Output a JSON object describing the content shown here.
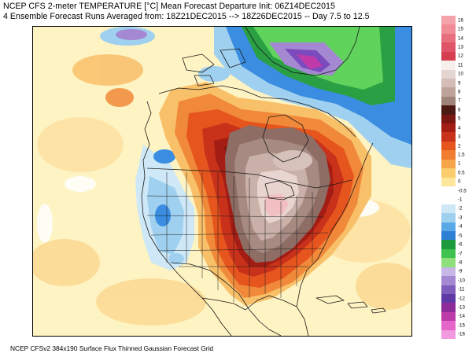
{
  "header": {
    "line1": "NCEP CFS 2-meter TEMPERATURE [°C] Mean Forecast Departure Init: 06Z14DEC2015",
    "line2": "4 Ensemble Forecast Runs Averaged from: 18Z21DEC2015 --> 18Z26DEC2015 -- Day 7.5 to 12.5"
  },
  "footer": "NCEP CFSv2 384x190 Surface Flux Thinned Gaussian Forecast Grid",
  "colorbar": {
    "unit": "°C",
    "bins": [
      {
        "label": "16",
        "color": "#f4a3ab"
      },
      {
        "label": "15",
        "color": "#ef8c96"
      },
      {
        "label": "14",
        "color": "#e86f7d"
      },
      {
        "label": "13",
        "color": "#e05467"
      },
      {
        "label": "12",
        "color": "#d53d50"
      },
      {
        "label": "11",
        "color": "#f6efec"
      },
      {
        "label": "10",
        "color": "#e4d5d1"
      },
      {
        "label": "9",
        "color": "#d4bdb6"
      },
      {
        "label": "8",
        "color": "#bfa39a"
      },
      {
        "label": "7",
        "color": "#9f8278"
      },
      {
        "label": "6",
        "color": "#4b1a12"
      },
      {
        "label": "5",
        "color": "#7a1712"
      },
      {
        "label": "4",
        "color": "#a41d14"
      },
      {
        "label": "3",
        "color": "#c8311a"
      },
      {
        "label": "2",
        "color": "#e6551e"
      },
      {
        "label": "1.5",
        "color": "#f07d31"
      },
      {
        "label": "1",
        "color": "#f7a54a"
      },
      {
        "label": "0.5",
        "color": "#fbcd6d"
      },
      {
        "label": "0",
        "color": "#fde79c"
      },
      {
        "label": "-0.5",
        "color": "#ffffff"
      },
      {
        "label": "-1",
        "color": "#ffffff"
      },
      {
        "label": "-2",
        "color": "#cfe8f7"
      },
      {
        "label": "-3",
        "color": "#9fd0f0"
      },
      {
        "label": "-4",
        "color": "#5aa8e6"
      },
      {
        "label": "-5",
        "color": "#2e7fd6"
      },
      {
        "label": "-6",
        "color": "#1d9a3c"
      },
      {
        "label": "-7",
        "color": "#3fc24f"
      },
      {
        "label": "-8",
        "color": "#8fe07d"
      },
      {
        "label": "-9",
        "color": "#c7b7e6"
      },
      {
        "label": "-10",
        "color": "#a489d2"
      },
      {
        "label": "-11",
        "color": "#7d5cbc"
      },
      {
        "label": "-12",
        "color": "#5f3aa6"
      },
      {
        "label": "-13",
        "color": "#8e2c9a"
      },
      {
        "label": "-14",
        "color": "#bd3aa9"
      },
      {
        "label": "-15",
        "color": "#e366c8"
      },
      {
        "label": "-16",
        "color": "#f29ae0"
      }
    ]
  },
  "palette": {
    "ocean_neutral": "#fef3c2",
    "warm_light": "#f9c06a",
    "warm_orange": "#f08a3a",
    "warm_red": "#d9441c",
    "warm_darkred": "#a91f16",
    "anomaly_max_brown": "#8d6d64",
    "anomaly_pale": "#e8d5cf",
    "anomaly_pink": "#f2bfc2",
    "cold_lightblue": "#a9d4f2",
    "cold_blue": "#3a8de0",
    "cold_green": "#5fd35b",
    "cold_purple": "#7b4bbd",
    "cold_magenta": "#c13aa9"
  }
}
